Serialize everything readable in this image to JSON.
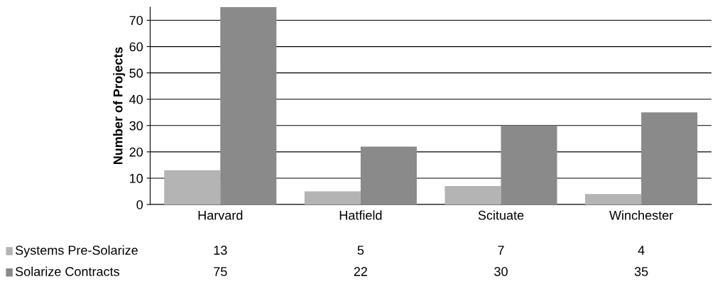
{
  "chart_data": {
    "type": "bar",
    "ylabel": "Number of Projects",
    "categories": [
      "Harvard",
      "Hatfield",
      "Scituate",
      "Winchester"
    ],
    "series": [
      {
        "name": "Systems Pre-Solarize",
        "color": "#b4b4b4",
        "values": [
          13,
          5,
          7,
          4
        ]
      },
      {
        "name": "Solarize Contracts",
        "color": "#8a8a8a",
        "values": [
          75,
          22,
          30,
          35
        ]
      }
    ],
    "ylim": [
      0,
      75
    ],
    "yticks": [
      0,
      10,
      20,
      30,
      40,
      50,
      60,
      70
    ],
    "grid": "y",
    "legend": "bottom",
    "data_labels": true
  }
}
